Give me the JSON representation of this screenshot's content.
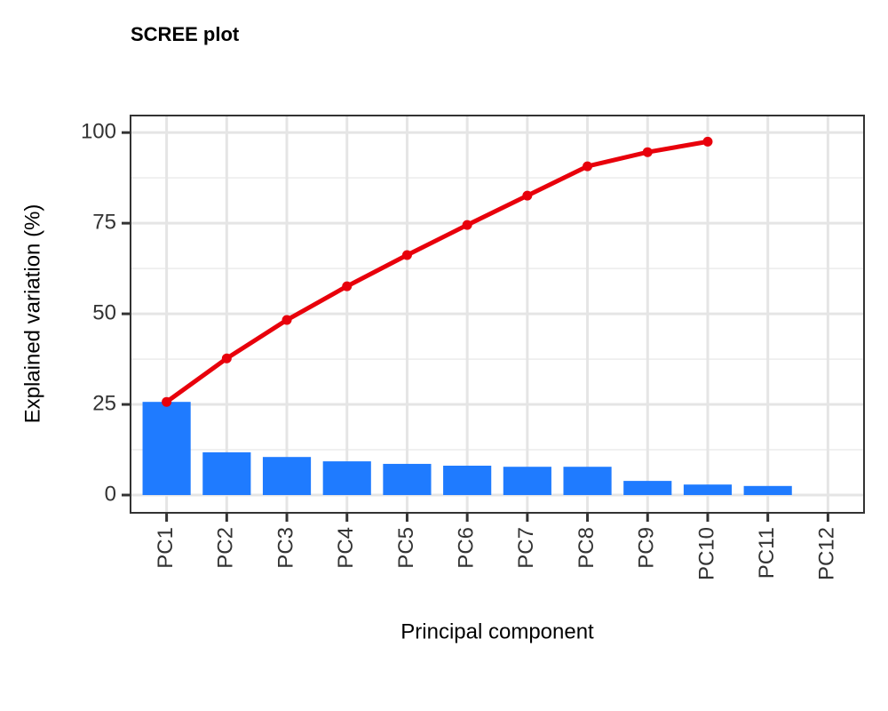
{
  "chart_data": {
    "type": "bar",
    "title": "SCREE plot",
    "x_label": "Principal component",
    "y_label": "Explained variation (%)",
    "categories": [
      "PC1",
      "PC2",
      "PC3",
      "PC4",
      "PC5",
      "PC6",
      "PC7",
      "PC8",
      "PC9",
      "PC10",
      "PC11",
      "PC12"
    ],
    "series": [
      {
        "type": "bar",
        "color": "#1f7bff",
        "values": [
          25.7,
          11.8,
          10.5,
          9.3,
          8.6,
          8.1,
          7.8,
          7.8,
          3.9,
          2.9,
          2.5,
          0
        ]
      },
      {
        "type": "line",
        "color": "#e8000b",
        "values": [
          25.7,
          37.7,
          48.3,
          57.6,
          66.2,
          74.5,
          82.6,
          90.7,
          94.6,
          97.5,
          null,
          null
        ]
      }
    ],
    "ylim": [
      -4.9,
      104.7
    ],
    "yticks": [
      0,
      25,
      50,
      75,
      100
    ],
    "grid": true
  }
}
